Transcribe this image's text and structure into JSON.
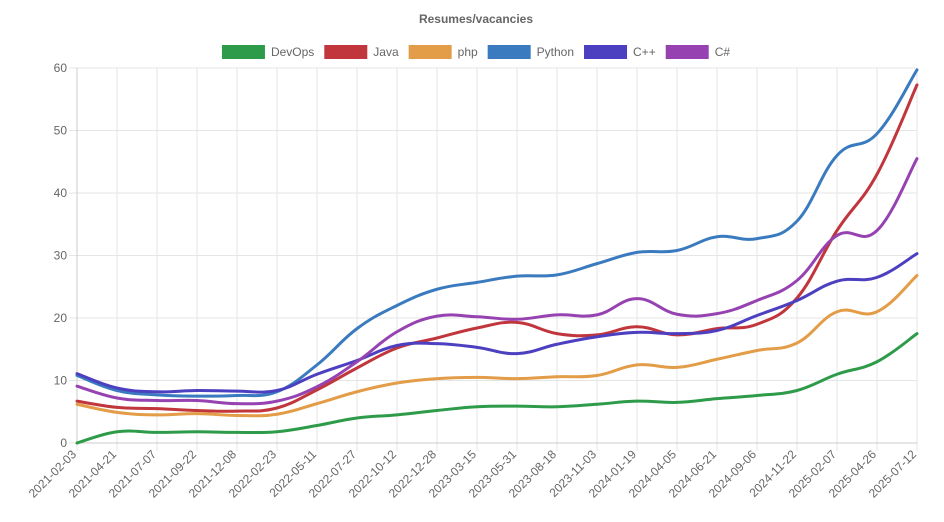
{
  "chart_data": {
    "type": "line",
    "title": "Resumes/vacancies",
    "xlabel": "",
    "ylabel": "",
    "ylim": [
      0,
      60
    ],
    "yticks": [
      0,
      10,
      20,
      30,
      40,
      50,
      60
    ],
    "grid": true,
    "legend_position": "top",
    "x": [
      "2021-02-03",
      "2021-04-21",
      "2021-07-07",
      "2021-09-22",
      "2021-12-08",
      "2022-02-23",
      "2022-05-11",
      "2022-07-27",
      "2022-10-12",
      "2022-12-28",
      "2023-03-15",
      "2023-05-31",
      "2023-08-18",
      "2023-11-03",
      "2024-01-19",
      "2024-04-05",
      "2024-06-21",
      "2024-09-06",
      "2024-11-22",
      "2025-02-07",
      "2025-04-26",
      "2025-07-12"
    ],
    "series": [
      {
        "name": "DevOps",
        "color": "#2e9b4a",
        "values": [
          0,
          1.8,
          1.7,
          1.8,
          1.7,
          1.8,
          2.8,
          4.0,
          4.5,
          5.2,
          5.8,
          5.9,
          5.8,
          6.2,
          6.7,
          6.5,
          7.1,
          7.6,
          8.4,
          11.0,
          13.0,
          17.5
        ]
      },
      {
        "name": "Java",
        "color": "#c0363c",
        "values": [
          6.7,
          5.7,
          5.5,
          5.2,
          5.1,
          5.6,
          8.5,
          12.0,
          15.2,
          16.8,
          18.4,
          19.3,
          17.5,
          17.3,
          18.6,
          17.3,
          18.3,
          19.0,
          23.2,
          34.0,
          43.0,
          57.3
        ]
      },
      {
        "name": "php",
        "color": "#e39c47",
        "values": [
          6.2,
          4.9,
          4.5,
          4.7,
          4.4,
          4.6,
          6.3,
          8.2,
          9.6,
          10.3,
          10.5,
          10.3,
          10.6,
          10.8,
          12.5,
          12.1,
          13.4,
          14.8,
          16.0,
          21.0,
          21.0,
          26.8
        ]
      },
      {
        "name": "Python",
        "color": "#3a7bbf",
        "values": [
          10.8,
          8.4,
          7.7,
          7.5,
          7.6,
          8.2,
          12.5,
          18.3,
          22.0,
          24.6,
          25.7,
          26.7,
          26.9,
          28.7,
          30.5,
          30.8,
          33.0,
          32.7,
          35.5,
          46.0,
          49.5,
          59.7
        ]
      },
      {
        "name": "C++",
        "color": "#4c3fc0",
        "values": [
          11.1,
          8.8,
          8.2,
          8.4,
          8.3,
          8.4,
          11.0,
          13.2,
          15.6,
          15.9,
          15.3,
          14.3,
          15.8,
          17.0,
          17.7,
          17.5,
          18.0,
          20.4,
          22.8,
          25.9,
          26.5,
          30.3
        ]
      },
      {
        "name": "C#",
        "color": "#9643b1",
        "values": [
          9.1,
          7.2,
          6.8,
          6.8,
          6.3,
          6.7,
          9.0,
          13.0,
          17.8,
          20.3,
          20.2,
          19.8,
          20.5,
          20.5,
          23.1,
          20.6,
          20.7,
          22.8,
          26.0,
          33.2,
          34.0,
          45.5
        ]
      }
    ]
  }
}
